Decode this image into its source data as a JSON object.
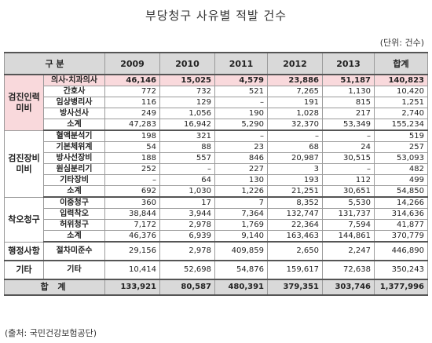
{
  "title": "부당청구 사유별 적발 건수",
  "unit": "(단위: 건수)",
  "source": "(출처: 국민건강보험공단)",
  "header": {
    "label": "구  분",
    "years": [
      "2009",
      "2010",
      "2011",
      "2012",
      "2013"
    ],
    "total": "합계"
  },
  "groups": [
    {
      "name": "검진인력\n미비",
      "rows": [
        {
          "label": "의사·치과의사",
          "values": [
            "46,146",
            "15,025",
            "4,579",
            "23,886",
            "51,187",
            "140,823"
          ],
          "highlight": true
        },
        {
          "label": "간호사",
          "values": [
            "772",
            "732",
            "521",
            "7,265",
            "1,130",
            "10,420"
          ]
        },
        {
          "label": "임상병리사",
          "values": [
            "116",
            "129",
            "–",
            "191",
            "815",
            "1,251"
          ]
        },
        {
          "label": "방사선사",
          "values": [
            "249",
            "1,056",
            "190",
            "1,028",
            "217",
            "2,740"
          ]
        },
        {
          "label": "소계",
          "values": [
            "47,283",
            "16,942",
            "5,290",
            "32,370",
            "53,349",
            "155,234"
          ],
          "sum": true
        }
      ]
    },
    {
      "name": "검진장비\n미비",
      "rows": [
        {
          "label": "혈액분석기",
          "values": [
            "198",
            "321",
            "–",
            "–",
            "–",
            "519"
          ]
        },
        {
          "label": "기본체위계",
          "values": [
            "54",
            "88",
            "23",
            "68",
            "24",
            "257"
          ]
        },
        {
          "label": "방사선장비",
          "values": [
            "188",
            "557",
            "846",
            "20,987",
            "30,515",
            "53,093"
          ]
        },
        {
          "label": "원심분리기",
          "values": [
            "252",
            "–",
            "227",
            "3",
            "–",
            "482"
          ]
        },
        {
          "label": "기타장비",
          "values": [
            "–",
            "64",
            "130",
            "193",
            "112",
            "499"
          ]
        },
        {
          "label": "소계",
          "values": [
            "692",
            "1,030",
            "1,226",
            "21,251",
            "30,651",
            "54,850"
          ],
          "sum": true
        }
      ]
    },
    {
      "name": "착오청구",
      "rows": [
        {
          "label": "이중청구",
          "values": [
            "360",
            "17",
            "7",
            "8,352",
            "5,530",
            "14,266"
          ]
        },
        {
          "label": "입력착오",
          "values": [
            "38,844",
            "3,944",
            "7,364",
            "132,747",
            "131,737",
            "314,636"
          ]
        },
        {
          "label": "허위청구",
          "values": [
            "7,172",
            "2,978",
            "1,769",
            "22,364",
            "7,594",
            "41,877"
          ]
        },
        {
          "label": "소계",
          "values": [
            "46,376",
            "6,939",
            "9,140",
            "163,463",
            "144,861",
            "370,779"
          ],
          "sum": true
        }
      ]
    },
    {
      "name": "행정사항",
      "rows": [
        {
          "label": "절차미준수",
          "values": [
            "29,156",
            "2,978",
            "409,859",
            "2,650",
            "2,247",
            "446,890"
          ],
          "single": true
        }
      ]
    },
    {
      "name": "기타",
      "rows": [
        {
          "label": "기타",
          "values": [
            "10,414",
            "52,698",
            "54,876",
            "159,617",
            "72,638",
            "350,243"
          ],
          "single": true
        }
      ]
    }
  ],
  "total": {
    "label": "합  계",
    "values": [
      "133,921",
      "80,587",
      "480,391",
      "379,351",
      "303,746",
      "1,377,996"
    ]
  }
}
